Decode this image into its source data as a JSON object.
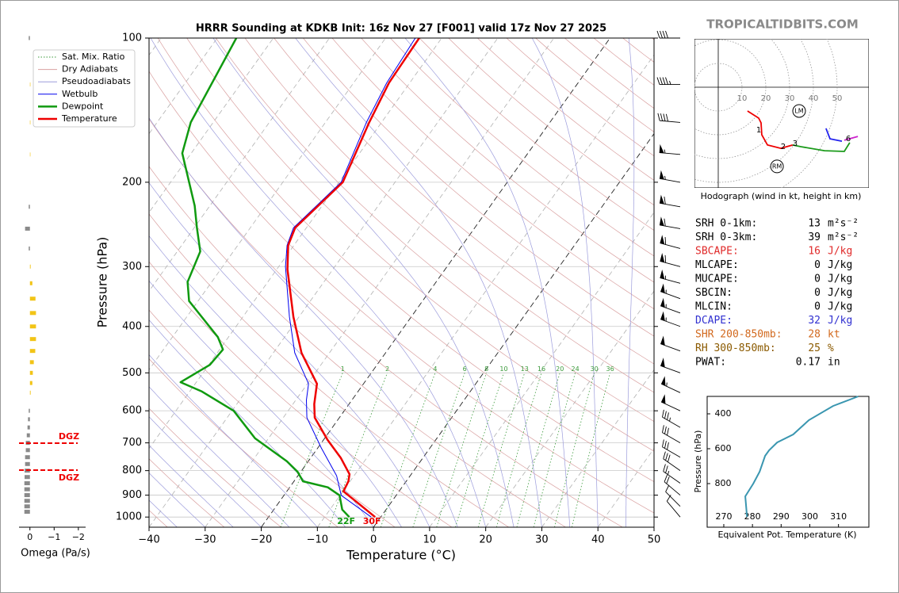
{
  "watermark": "TROPICALTIDBITS.COM",
  "chart_data": [
    {
      "type": "skewt",
      "title": "HRRR Sounding at KDKB Init: 16z Nov 27 [F001] valid 17z Nov 27 2025",
      "xlabel": "Temperature (°C)",
      "ylabel": "Pressure (hPa)",
      "xlim": [
        -40,
        50
      ],
      "ylim": [
        1050,
        100
      ],
      "log_y": true,
      "xticks": [
        {
          "value": -40,
          "label": "−40"
        },
        {
          "value": -30,
          "label": "−30"
        },
        {
          "value": -20,
          "label": "−20"
        },
        {
          "value": -10,
          "label": "−10"
        },
        0,
        10,
        20,
        30,
        40,
        50
      ],
      "yticks": [
        100,
        200,
        300,
        400,
        500,
        600,
        700,
        800,
        900,
        1000
      ],
      "grid": true,
      "legend": "upper left",
      "highlight_isotherms": [
        0,
        -20
      ],
      "mixing_ratio_labels": [
        1,
        2,
        4,
        6,
        8,
        10,
        13,
        16,
        20,
        24,
        30,
        36
      ],
      "reference_lines": [
        {
          "name": "Sat. Mix. Ratio",
          "color": "#3a9a3a"
        },
        {
          "name": "Dry Adiabats",
          "color": "#d9a0a0"
        },
        {
          "name": "Pseudoadiabats",
          "color": "#9c9cdc"
        }
      ],
      "series": [
        {
          "name": "Wetbulb",
          "color": "#0000ee",
          "pressure": [
            1000,
            901,
            820,
            717,
            620,
            570,
            527,
            454,
            382,
            300,
            271,
            249,
            200,
            150,
            124,
            100
          ],
          "values": [
            -1.7,
            -9.8,
            -13.1,
            -19.4,
            -25.8,
            -28.1,
            -29.8,
            -36.2,
            -41.7,
            -48.8,
            -51.2,
            -52.3,
            -49.6,
            -52.7,
            -54.1,
            -54.7
          ]
        },
        {
          "name": "Dewpoint",
          "color": "#109a10",
          "pressure": [
            1000,
            965,
            901,
            867,
            842,
            804,
            765,
            685,
            600,
            547,
            523,
            481,
            447,
            421,
            354,
            323,
            279,
            249,
            224,
            174,
            150,
            100
          ],
          "values": [
            -5.6,
            -7.8,
            -10.1,
            -13.2,
            -18.4,
            -20.6,
            -23.8,
            -32.4,
            -39.7,
            -47.8,
            -52.8,
            -49.8,
            -49.4,
            -51.9,
            -61.6,
            -64.3,
            -65.9,
            -69.5,
            -72.7,
            -81.6,
            -84,
            -86.6
          ]
        },
        {
          "name": "Temperature",
          "color": "#ee0000",
          "pressure": [
            1000,
            930,
            884,
            842,
            814,
            753,
            690,
            620,
            581,
            527,
            454,
            382,
            304,
            271,
            249,
            200,
            150,
            124,
            100
          ],
          "values": [
            -1,
            -6.2,
            -9.9,
            -10.3,
            -11,
            -14.6,
            -19.3,
            -24.4,
            -26.2,
            -28.3,
            -35,
            -41,
            -48.1,
            -51,
            -52,
            -49.3,
            -52.2,
            -53.7,
            -54
          ]
        }
      ],
      "surface_labels": [
        {
          "text": "22F",
          "color": "#109a10"
        },
        {
          "text": "30F",
          "color": "#ee0000"
        }
      ],
      "wind": {
        "pressure": [
          100,
          125,
          150,
          175,
          200,
          225,
          250,
          275,
          300,
          325,
          350,
          375,
          400,
          450,
          500,
          550,
          600,
          650,
          700,
          750,
          800,
          850,
          900,
          950,
          1000
        ],
        "speed": [
          40,
          45,
          40,
          55,
          55,
          60,
          60,
          60,
          60,
          55,
          55,
          55,
          55,
          50,
          50,
          55,
          50,
          35,
          30,
          30,
          30,
          25,
          20,
          10,
          10
        ],
        "direction": [
          270,
          270,
          275,
          275,
          280,
          280,
          280,
          285,
          285,
          285,
          290,
          290,
          290,
          290,
          290,
          295,
          295,
          300,
          300,
          300,
          305,
          305,
          310,
          315,
          320
        ]
      }
    },
    {
      "type": "hodograph",
      "xlabel": "Hodograph (wind in kt, height in km)",
      "rings": [
        10,
        20,
        30,
        40,
        50
      ],
      "series": [
        {
          "color": "#ee0000",
          "u": [
            12.3,
            17,
            18,
            18.3,
            20.7,
            26.3,
            31.3
          ],
          "v": [
            -10,
            -13,
            -15,
            -20,
            -24.3,
            -25.7,
            -24.3
          ]
        },
        {
          "color": "#1a9a1a",
          "u": [
            31.3,
            34.7,
            44.7,
            53,
            55.3
          ],
          "v": [
            -24.3,
            -25,
            -26.7,
            -27,
            -23.3
          ]
        },
        {
          "color": "#2222ee",
          "u": [
            45.3,
            47,
            52
          ],
          "v": [
            -17.3,
            -21.7,
            -22.7
          ]
        },
        {
          "color": "#cc22cc",
          "u": [
            53,
            58.7
          ],
          "v": [
            -22.3,
            -20.7
          ]
        }
      ],
      "height_labels": [
        {
          "value": 1,
          "u": 17,
          "v": -18
        },
        {
          "value": 2,
          "u": 27.3,
          "v": -25
        },
        {
          "value": 3,
          "u": 32.3,
          "v": -23.7
        },
        {
          "value": 6,
          "u": 54.7,
          "v": -21.7
        }
      ],
      "storm_motion": [
        {
          "label": "LM",
          "u": 34,
          "v": -10
        },
        {
          "label": "RM",
          "u": 24.7,
          "v": -33.3
        }
      ]
    },
    {
      "type": "line",
      "xlabel": "Equivalent Pot. Temperature (K)",
      "ylabel": "Pressure (hPa)",
      "xlim": [
        264.2,
        320.6
      ],
      "ylim": [
        1050,
        300
      ],
      "xticks": [
        270,
        280,
        290,
        300,
        310
      ],
      "yticks": [
        400,
        600,
        800
      ],
      "color": "#3a96b0",
      "pressure": [
        991,
        873,
        800,
        732,
        641,
        609,
        564,
        518,
        436,
        355,
        300
      ],
      "values": [
        278.1,
        277.5,
        280.3,
        282.5,
        284.4,
        285.8,
        288.6,
        294.2,
        299.7,
        308.1,
        316.9
      ]
    },
    {
      "type": "hbar",
      "xlabel": "Omega (Pa/s)",
      "xlim": [
        0.45,
        -2.3
      ],
      "ylim": [
        1050,
        100
      ],
      "xticks": [
        0,
        {
          "value": -1,
          "label": "−1"
        },
        {
          "value": -2,
          "label": "−2"
        }
      ],
      "colors": {
        "positive": "#8a8a8a",
        "negative": "#f2c416"
      },
      "pressure": [
        100,
        125,
        150,
        175,
        225,
        250,
        275,
        300,
        325,
        350,
        375,
        400,
        425,
        450,
        475,
        500,
        525,
        550,
        600,
        625,
        650,
        675,
        700,
        725,
        750,
        775,
        800,
        825,
        850,
        875,
        900,
        925,
        950,
        975
      ],
      "values": [
        0.05,
        -0.02,
        -0.02,
        -0.02,
        0.05,
        0.2,
        0.05,
        -0.03,
        -0.1,
        -0.23,
        -0.25,
        -0.25,
        -0.25,
        -0.22,
        -0.16,
        -0.12,
        -0.1,
        -0.03,
        0.05,
        0.08,
        0.1,
        0.13,
        0.17,
        0.17,
        0.2,
        0.2,
        0.22,
        0.22,
        0.23,
        0.23,
        0.23,
        0.23,
        0.23,
        0.23
      ],
      "dgz": {
        "pressure": [
          701,
          798
        ],
        "labels": [
          "DGZ",
          "DGZ"
        ],
        "color": "#ee0000"
      }
    }
  ],
  "stats": [
    {
      "label": "SRH 0-1km:",
      "value": 13,
      "unit": "m²s⁻²",
      "color": "#000000"
    },
    {
      "label": "SRH 0-3km:",
      "value": 39,
      "unit": "m²s⁻²",
      "color": "#000000"
    },
    {
      "label": "SBCAPE:",
      "value": 16,
      "unit": "J/kg",
      "color": "#e02a2a"
    },
    {
      "label": "MLCAPE:",
      "value": 0,
      "unit": "J/kg",
      "color": "#000000"
    },
    {
      "label": "MUCAPE:",
      "value": 0,
      "unit": "J/kg",
      "color": "#000000"
    },
    {
      "label": "SBCIN:",
      "value": 0,
      "unit": "J/kg",
      "color": "#000000"
    },
    {
      "label": "MLCIN:",
      "value": 0,
      "unit": "J/kg",
      "color": "#000000"
    },
    {
      "label": "DCAPE:",
      "value": 32,
      "unit": "J/kg",
      "color": "#3030d0"
    },
    {
      "label": "SHR 200-850mb:",
      "value": 28,
      "unit": "kt",
      "color": "#d2691e"
    },
    {
      "label": "RH 300-850mb:",
      "value": 25,
      "unit": "%",
      "color": "#8b5a00"
    },
    {
      "label": "PWAT:",
      "value": 0.17,
      "unit": "in",
      "color": "#000000"
    }
  ]
}
